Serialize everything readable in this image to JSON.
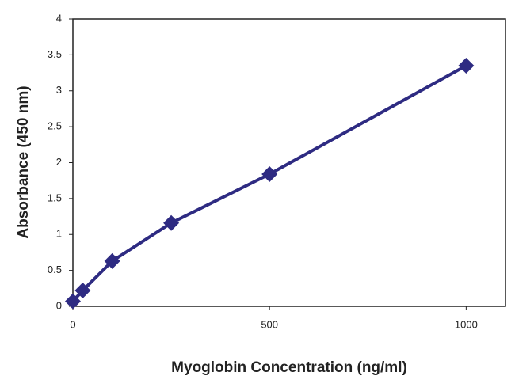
{
  "chart_data": {
    "type": "line",
    "x_label": "Myoglobin Concentration (ng/ml)",
    "y_label": "Absorbance (450 nm)",
    "series": [
      {
        "color": "#2e2b82",
        "x": [
          0,
          25,
          100,
          250,
          500,
          1000
        ],
        "values": [
          0.07,
          0.22,
          0.63,
          1.16,
          1.84,
          3.35
        ]
      }
    ],
    "xlim": [
      0,
      1100
    ],
    "xticks": [
      0,
      500,
      1000
    ],
    "ylim": [
      0,
      4
    ],
    "yticks": [
      0,
      0.5,
      1,
      1.5,
      2,
      2.5,
      3,
      3.5,
      4
    ],
    "grid": false
  }
}
